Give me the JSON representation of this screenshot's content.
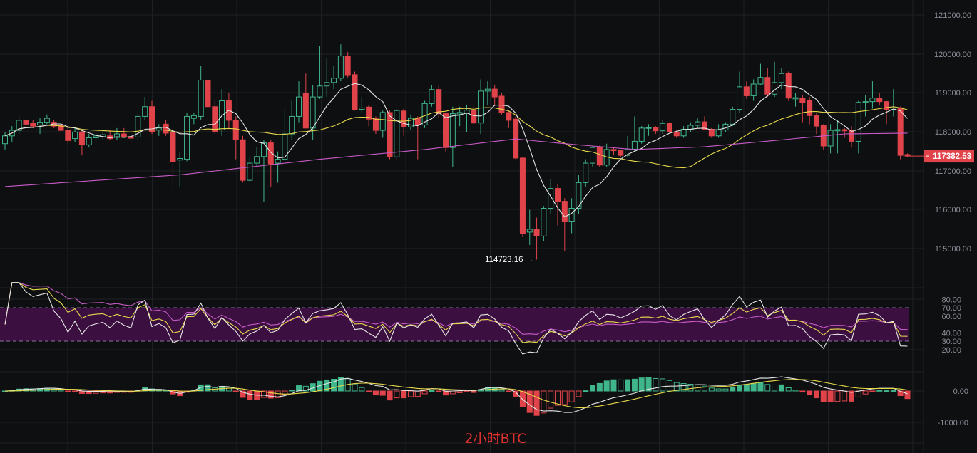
{
  "chart_data": {
    "type": "candlestick",
    "title": "2小时BTC",
    "symbol": "BTC",
    "interval_label": "2小时",
    "colors": {
      "up": "#3fb68b",
      "down": "#e0434a",
      "ma_short": "#e6e6e6",
      "ma_mid": "#e8d94a",
      "ma_long": "#c85bc8",
      "rsi_band": "#3b1040",
      "background": "#0e0f11"
    },
    "price_axis": {
      "ticks": [
        "121000.00",
        "120000.00",
        "119000.00",
        "118000.00",
        "117000.00",
        "116000.00",
        "115000.00"
      ],
      "ylim": [
        114500,
        121300
      ]
    },
    "current_price": "117382.53",
    "low_annotation": "114723.16 →",
    "ohlc": [
      [
        117700,
        118000,
        117550,
        117900
      ],
      [
        117900,
        118150,
        117750,
        118040
      ],
      [
        118040,
        118400,
        117950,
        118300
      ],
      [
        118300,
        118350,
        118100,
        118200
      ],
      [
        118230,
        118300,
        118100,
        118150
      ],
      [
        118180,
        118350,
        117950,
        118250
      ],
      [
        118250,
        118450,
        118200,
        118350
      ],
      [
        118250,
        118300,
        118100,
        118150
      ],
      [
        118180,
        118200,
        117650,
        118040
      ],
      [
        118050,
        118100,
        117700,
        117780
      ],
      [
        117830,
        118100,
        117750,
        118000
      ],
      [
        118000,
        118050,
        117400,
        117670
      ],
      [
        117670,
        117950,
        117600,
        117850
      ],
      [
        117850,
        118000,
        117750,
        117900
      ],
      [
        117880,
        118050,
        117800,
        117930
      ],
      [
        117900,
        118050,
        117800,
        117830
      ],
      [
        117860,
        118100,
        117800,
        117950
      ],
      [
        117950,
        118100,
        117850,
        117880
      ],
      [
        117880,
        117950,
        117750,
        117840
      ],
      [
        117870,
        118500,
        117800,
        118400
      ],
      [
        118400,
        118900,
        118300,
        118650
      ],
      [
        118650,
        118800,
        117950,
        118000
      ],
      [
        118050,
        118200,
        117900,
        118100
      ],
      [
        118200,
        118300,
        117900,
        117970
      ],
      [
        117980,
        118050,
        116550,
        117240
      ],
      [
        117280,
        117500,
        116600,
        117320
      ],
      [
        117300,
        118500,
        117250,
        118400
      ],
      [
        118350,
        118500,
        118200,
        118420
      ],
      [
        118400,
        119700,
        118300,
        119330
      ],
      [
        119330,
        119550,
        118450,
        118650
      ],
      [
        118650,
        118800,
        117950,
        118000
      ],
      [
        118050,
        119100,
        117900,
        118800
      ],
      [
        118800,
        119000,
        118100,
        118300
      ],
      [
        118300,
        118400,
        117300,
        117800
      ],
      [
        117800,
        117900,
        116700,
        116760
      ],
      [
        116760,
        117350,
        116700,
        117200
      ],
      [
        117200,
        117600,
        117100,
        117370
      ],
      [
        117370,
        117800,
        116200,
        117720
      ],
      [
        117720,
        117800,
        116600,
        117180
      ],
      [
        117200,
        117500,
        116700,
        117300
      ],
      [
        117300,
        118600,
        117300,
        117950
      ],
      [
        117950,
        118800,
        117800,
        118400
      ],
      [
        118400,
        119300,
        118250,
        118900
      ],
      [
        119000,
        119500,
        118100,
        118100
      ],
      [
        118100,
        119200,
        117800,
        118900
      ],
      [
        118900,
        120200,
        118850,
        119180
      ],
      [
        119180,
        119900,
        118900,
        119270
      ],
      [
        119270,
        119700,
        119100,
        119380
      ],
      [
        119380,
        120250,
        119300,
        119950
      ],
      [
        119950,
        120050,
        119400,
        119450
      ],
      [
        119470,
        119550,
        118550,
        118580
      ],
      [
        118580,
        118900,
        118500,
        118620
      ],
      [
        118640,
        118700,
        118150,
        118330
      ],
      [
        118340,
        118400,
        117950,
        118040
      ],
      [
        118040,
        118550,
        117850,
        118500
      ],
      [
        118500,
        118550,
        117300,
        117360
      ],
      [
        117360,
        118600,
        117300,
        118550
      ],
      [
        118540,
        118600,
        117900,
        118130
      ],
      [
        118130,
        118450,
        118050,
        118350
      ],
      [
        118350,
        118400,
        117300,
        118180
      ],
      [
        118180,
        118800,
        118100,
        118730
      ],
      [
        118730,
        119200,
        118650,
        119090
      ],
      [
        119090,
        119200,
        118350,
        118470
      ],
      [
        118470,
        118500,
        117500,
        117600
      ],
      [
        117600,
        118650,
        117100,
        118470
      ],
      [
        118460,
        118650,
        118150,
        118500
      ],
      [
        118480,
        118700,
        118000,
        118560
      ],
      [
        118560,
        118650,
        118200,
        118230
      ],
      [
        118230,
        119350,
        117950,
        119050
      ],
      [
        119050,
        119300,
        118700,
        119100
      ],
      [
        119100,
        119200,
        118700,
        118900
      ],
      [
        118920,
        119000,
        118450,
        118500
      ],
      [
        118500,
        118550,
        118100,
        118300
      ],
      [
        118330,
        118400,
        117300,
        117330
      ],
      [
        117330,
        117350,
        115300,
        115400
      ],
      [
        115430,
        116000,
        115100,
        115500
      ],
      [
        115500,
        115800,
        114723.16,
        115330
      ],
      [
        115330,
        116100,
        115200,
        116040
      ],
      [
        116040,
        116800,
        115900,
        116550
      ],
      [
        116550,
        116650,
        115600,
        116220
      ],
      [
        116220,
        116300,
        114950,
        115710
      ],
      [
        115710,
        116300,
        115400,
        116040
      ],
      [
        116040,
        116900,
        115900,
        116700
      ],
      [
        116700,
        117300,
        116600,
        117200
      ],
      [
        117200,
        117650,
        117100,
        117600
      ],
      [
        117600,
        117650,
        117100,
        117150
      ],
      [
        117150,
        117700,
        117100,
        117550
      ],
      [
        117550,
        117600,
        117400,
        117520
      ],
      [
        117520,
        117550,
        117350,
        117400
      ],
      [
        117400,
        117900,
        117350,
        117560
      ],
      [
        117560,
        118400,
        117500,
        117760
      ],
      [
        117760,
        118150,
        117700,
        118100
      ],
      [
        118100,
        118200,
        117900,
        118110
      ],
      [
        118110,
        118150,
        117950,
        118030
      ],
      [
        118030,
        118300,
        117950,
        118220
      ],
      [
        118220,
        118250,
        117950,
        118000
      ],
      [
        118000,
        118050,
        117850,
        117900
      ],
      [
        117900,
        118150,
        117850,
        118070
      ],
      [
        118070,
        118250,
        118000,
        118170
      ],
      [
        118170,
        118350,
        118100,
        118260
      ],
      [
        118260,
        118400,
        118050,
        118070
      ],
      [
        118070,
        118100,
        117850,
        117900
      ],
      [
        117900,
        118200,
        117850,
        118050
      ],
      [
        118050,
        118250,
        118000,
        118200
      ],
      [
        118200,
        118650,
        118150,
        118580
      ],
      [
        118580,
        119550,
        118500,
        119160
      ],
      [
        119160,
        119300,
        118850,
        118930
      ],
      [
        118930,
        119350,
        118800,
        119230
      ],
      [
        119230,
        119750,
        119200,
        119400
      ],
      [
        119400,
        119650,
        118900,
        118970
      ],
      [
        118970,
        119800,
        118900,
        119270
      ],
      [
        119270,
        119650,
        119100,
        119500
      ],
      [
        119500,
        119550,
        118800,
        118870
      ],
      [
        118850,
        119000,
        118650,
        118880
      ],
      [
        118870,
        118950,
        118250,
        118760
      ],
      [
        118820,
        118900,
        118200,
        118420
      ],
      [
        118420,
        118500,
        117950,
        118150
      ],
      [
        118160,
        118200,
        117550,
        117640
      ],
      [
        117640,
        118200,
        117450,
        118040
      ],
      [
        118030,
        118300,
        117450,
        118060
      ],
      [
        118060,
        118100,
        117850,
        118030
      ],
      [
        118040,
        118150,
        117600,
        117760
      ],
      [
        117760,
        118800,
        117450,
        118760
      ],
      [
        118760,
        118950,
        118400,
        118780
      ],
      [
        118780,
        119300,
        118600,
        118870
      ],
      [
        118870,
        119000,
        118700,
        118780
      ],
      [
        118780,
        118800,
        118200,
        118580
      ],
      [
        118580,
        119100,
        118400,
        118620
      ],
      [
        118620,
        118650,
        117300,
        117400
      ],
      [
        117420,
        117450,
        117350,
        117382.53
      ]
    ],
    "moving_averages": {
      "short_period": 7,
      "mid_period": 25
    },
    "ma_long_points": [
      [
        0,
        116600
      ],
      [
        25,
        116900
      ],
      [
        45,
        117300
      ],
      [
        60,
        117550
      ],
      [
        73,
        117820
      ],
      [
        80,
        117700
      ],
      [
        90,
        117550
      ],
      [
        100,
        117620
      ],
      [
        110,
        117780
      ],
      [
        120,
        117950
      ],
      [
        129,
        117970
      ]
    ],
    "rsi": {
      "periods": [
        6,
        12,
        24
      ],
      "ticks": [
        "80.00",
        "70.00",
        "60.00",
        "40.00",
        "30.00",
        "20.00"
      ],
      "band": [
        30,
        70
      ]
    },
    "macd": {
      "params": [
        12,
        26,
        9
      ],
      "ticks": [
        "0.00",
        "-1000.00"
      ]
    }
  }
}
